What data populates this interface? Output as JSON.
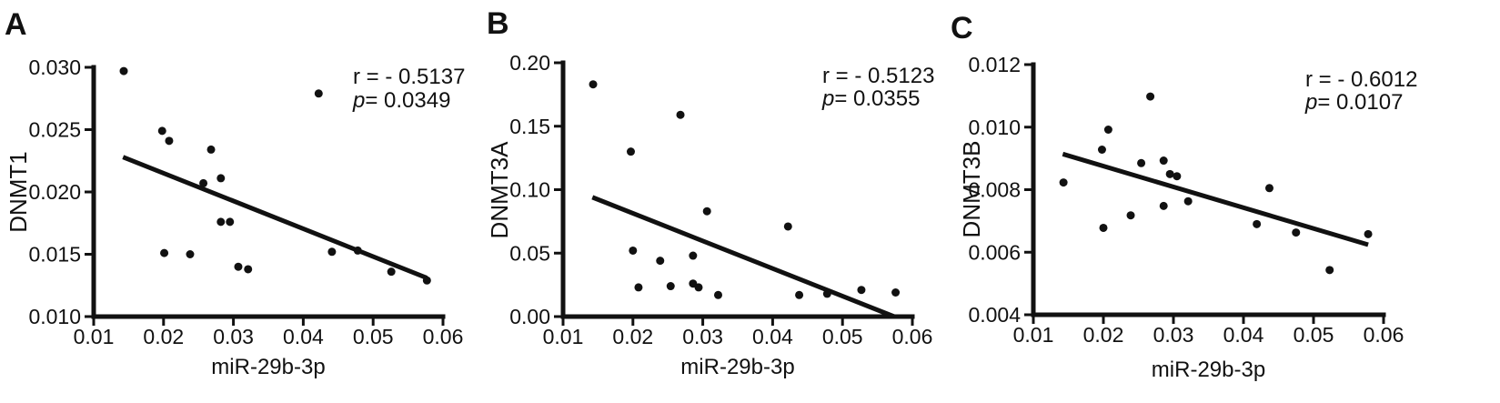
{
  "chart_data": [
    {
      "type": "scatter",
      "panel_label": "A",
      "xlabel": "miR-29b-3p",
      "ylabel": "DNMT1",
      "xlim": [
        0.01,
        0.06
      ],
      "ylim": [
        0.01,
        0.03
      ],
      "xticks": [
        "0.01",
        "0.02",
        "0.03",
        "0.04",
        "0.05",
        "0.06"
      ],
      "yticks": [
        "0.010",
        "0.015",
        "0.020",
        "0.025",
        "0.030"
      ],
      "stat_r": "r = - 0.5137",
      "stat_p_label": "p",
      "stat_p_value": "=  0.0349",
      "points": [
        {
          "x": 0.0143,
          "y": 0.0297
        },
        {
          "x": 0.0198,
          "y": 0.0249
        },
        {
          "x": 0.0208,
          "y": 0.0241
        },
        {
          "x": 0.0201,
          "y": 0.0151
        },
        {
          "x": 0.0238,
          "y": 0.015
        },
        {
          "x": 0.0257,
          "y": 0.0207
        },
        {
          "x": 0.0268,
          "y": 0.0234
        },
        {
          "x": 0.0282,
          "y": 0.0211
        },
        {
          "x": 0.0282,
          "y": 0.0176
        },
        {
          "x": 0.0295,
          "y": 0.0176
        },
        {
          "x": 0.0307,
          "y": 0.014
        },
        {
          "x": 0.0321,
          "y": 0.0138
        },
        {
          "x": 0.0422,
          "y": 0.0279
        },
        {
          "x": 0.0441,
          "y": 0.0152
        },
        {
          "x": 0.0478,
          "y": 0.0153
        },
        {
          "x": 0.0526,
          "y": 0.0136
        },
        {
          "x": 0.0577,
          "y": 0.0129
        }
      ],
      "fit_line": [
        {
          "x": 0.0142,
          "y": 0.0228
        },
        {
          "x": 0.0577,
          "y": 0.0131
        }
      ]
    },
    {
      "type": "scatter",
      "panel_label": "B",
      "xlabel": "miR-29b-3p",
      "ylabel": "DNMT3A",
      "xlim": [
        0.01,
        0.06
      ],
      "ylim": [
        0.0,
        0.2
      ],
      "xticks": [
        "0.01",
        "0.02",
        "0.03",
        "0.04",
        "0.05",
        "0.06"
      ],
      "yticks": [
        "0.00",
        "0.05",
        "0.10",
        "0.15",
        "0.20"
      ],
      "stat_r": "r = - 0.5123",
      "stat_p_label": "p",
      "stat_p_value": "=  0.0355",
      "points": [
        {
          "x": 0.0143,
          "y": 0.183
        },
        {
          "x": 0.0197,
          "y": 0.13
        },
        {
          "x": 0.02,
          "y": 0.052
        },
        {
          "x": 0.0208,
          "y": 0.023
        },
        {
          "x": 0.0239,
          "y": 0.044
        },
        {
          "x": 0.0254,
          "y": 0.024
        },
        {
          "x": 0.0268,
          "y": 0.159
        },
        {
          "x": 0.0286,
          "y": 0.048
        },
        {
          "x": 0.0286,
          "y": 0.026
        },
        {
          "x": 0.0294,
          "y": 0.023
        },
        {
          "x": 0.0306,
          "y": 0.083
        },
        {
          "x": 0.0322,
          "y": 0.017
        },
        {
          "x": 0.0422,
          "y": 0.071
        },
        {
          "x": 0.0438,
          "y": 0.017
        },
        {
          "x": 0.0478,
          "y": 0.018
        },
        {
          "x": 0.0527,
          "y": 0.021
        },
        {
          "x": 0.0576,
          "y": 0.019
        }
      ],
      "fit_line": [
        {
          "x": 0.0142,
          "y": 0.094
        },
        {
          "x": 0.0574,
          "y": 0.0
        }
      ]
    },
    {
      "type": "scatter",
      "panel_label": "C",
      "xlabel": "miR-29b-3p",
      "ylabel": "DNMT3B",
      "xlim": [
        0.01,
        0.06
      ],
      "ylim": [
        0.004,
        0.012
      ],
      "xticks": [
        "0.01",
        "0.02",
        "0.03",
        "0.04",
        "0.05",
        "0.06"
      ],
      "yticks": [
        "0.004",
        "0.006",
        "0.008",
        "0.010",
        "0.012"
      ],
      "stat_r": "r = - 0.6012",
      "stat_p_label": "p",
      "stat_p_value": "=  0.0107",
      "points": [
        {
          "x": 0.0143,
          "y": 0.00823
        },
        {
          "x": 0.0198,
          "y": 0.00928
        },
        {
          "x": 0.02,
          "y": 0.00678
        },
        {
          "x": 0.0207,
          "y": 0.00992
        },
        {
          "x": 0.0239,
          "y": 0.00718
        },
        {
          "x": 0.0254,
          "y": 0.00885
        },
        {
          "x": 0.0267,
          "y": 0.01098
        },
        {
          "x": 0.0286,
          "y": 0.00893
        },
        {
          "x": 0.0286,
          "y": 0.00748
        },
        {
          "x": 0.0295,
          "y": 0.0085
        },
        {
          "x": 0.0305,
          "y": 0.00843
        },
        {
          "x": 0.0321,
          "y": 0.00763
        },
        {
          "x": 0.0419,
          "y": 0.0069
        },
        {
          "x": 0.0437,
          "y": 0.00805
        },
        {
          "x": 0.0475,
          "y": 0.00663
        },
        {
          "x": 0.0523,
          "y": 0.00543
        },
        {
          "x": 0.0578,
          "y": 0.00658
        }
      ],
      "fit_line": [
        {
          "x": 0.0142,
          "y": 0.00914
        },
        {
          "x": 0.0578,
          "y": 0.00624
        }
      ]
    }
  ]
}
